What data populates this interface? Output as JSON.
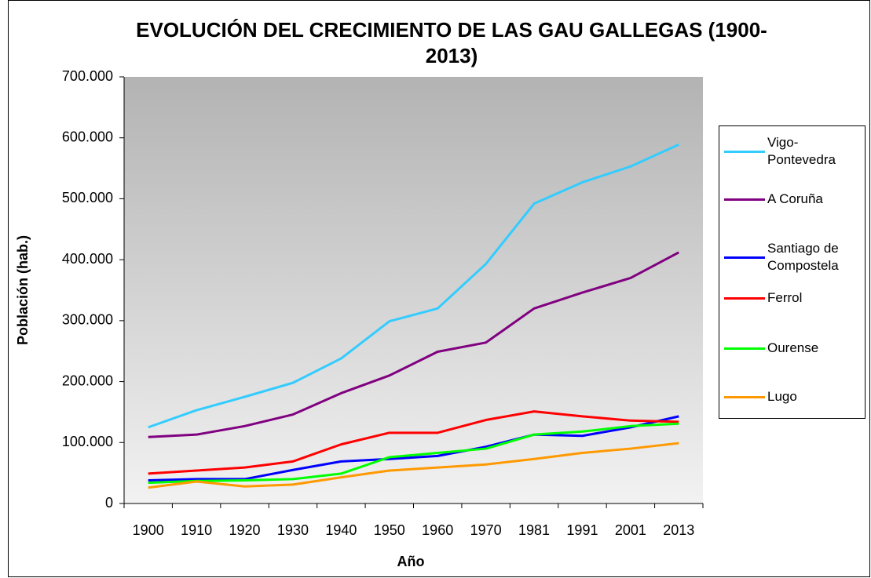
{
  "chart_data": {
    "type": "line",
    "title": "EVOLUCIÓN DEL CRECIMIENTO DE LAS GAU GALLEGAS (1900-2013)",
    "x_label": "Año",
    "y_label": "Población (hab.)",
    "categories": [
      "1900",
      "1910",
      "1920",
      "1930",
      "1940",
      "1950",
      "1960",
      "1970",
      "1981",
      "1991",
      "2001",
      "2013"
    ],
    "series": [
      {
        "name": "Vigo-Pontevedra",
        "color": "#33ccff",
        "values": [
          125000,
          153000,
          175000,
          198000,
          238000,
          299000,
          320000,
          393000,
          492000,
          527000,
          553000,
          589000
        ]
      },
      {
        "name": "A Coruña",
        "color": "#800080",
        "values": [
          109000,
          113000,
          127000,
          146000,
          181000,
          210000,
          249000,
          264000,
          320000,
          346000,
          370000,
          412000
        ]
      },
      {
        "name": "Santiago de Compostela",
        "color": "#0000ff",
        "values": [
          38000,
          40000,
          40000,
          55000,
          69000,
          73000,
          78000,
          93000,
          113000,
          111000,
          125000,
          143000
        ]
      },
      {
        "name": "Ferrol",
        "color": "#ff0000",
        "values": [
          49000,
          54000,
          59000,
          69000,
          97000,
          116000,
          116000,
          137000,
          151000,
          143000,
          136000,
          134000
        ]
      },
      {
        "name": "Ourense",
        "color": "#00ff00",
        "values": [
          34000,
          37000,
          38000,
          40000,
          49000,
          76000,
          83000,
          90000,
          113000,
          118000,
          127000,
          131000
        ]
      },
      {
        "name": "Lugo",
        "color": "#ff9900",
        "values": [
          26000,
          36000,
          28000,
          31000,
          43000,
          54000,
          59000,
          64000,
          73000,
          83000,
          90000,
          99000
        ]
      }
    ],
    "ylim": [
      0,
      700000
    ],
    "yticks": [
      0,
      {
        "value": 100000,
        "label": "100.000"
      },
      {
        "value": 200000,
        "label": "200.000"
      },
      {
        "value": 300000,
        "label": "300.000"
      },
      {
        "value": 400000,
        "label": "400.000"
      },
      {
        "value": 500000,
        "label": "500.000"
      },
      {
        "value": 600000,
        "label": "600.000"
      },
      {
        "value": 700000,
        "label": "700.000"
      }
    ],
    "legend": "right"
  }
}
